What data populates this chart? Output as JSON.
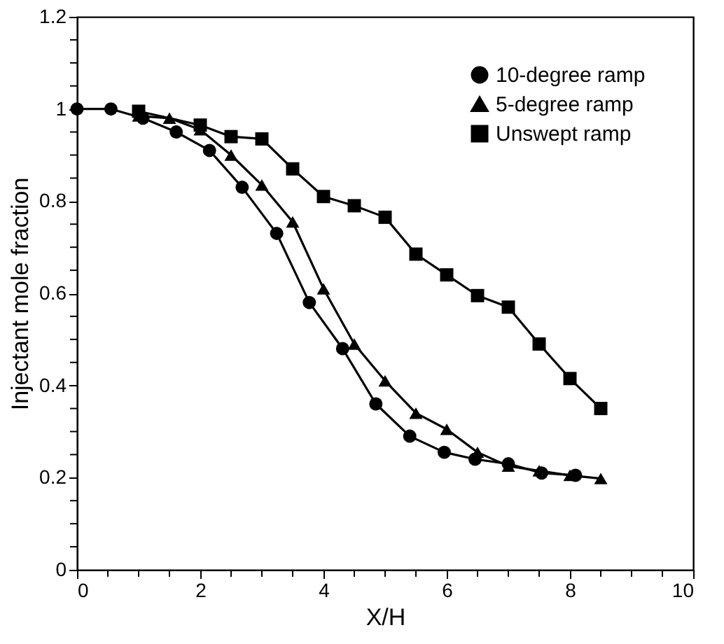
{
  "chart_data": {
    "type": "line",
    "xlabel": "X/H",
    "ylabel": "Injectant  mole fraction",
    "xlim": [
      0,
      10
    ],
    "ylim": [
      0,
      1.2
    ],
    "xticks": [
      0,
      {
        "value": 0.5,
        "label": null
      },
      {
        "value": 1,
        "label": null
      },
      {
        "value": 1.5,
        "label": null
      },
      2,
      {
        "value": 2.5,
        "label": null
      },
      {
        "value": 3,
        "label": null
      },
      {
        "value": 3.5,
        "label": null
      },
      4,
      {
        "value": 4.5,
        "label": null
      },
      {
        "value": 5,
        "label": null
      },
      {
        "value": 5.5,
        "label": null
      },
      6,
      {
        "value": 6.5,
        "label": null
      },
      {
        "value": 7,
        "label": null
      },
      {
        "value": 7.5,
        "label": null
      },
      8,
      {
        "value": 8.5,
        "label": null
      },
      {
        "value": 9,
        "label": null
      },
      {
        "value": 9.5,
        "label": null
      },
      10
    ],
    "yticks": [
      0,
      {
        "value": 0.05,
        "label": null
      },
      {
        "value": 0.1,
        "label": null
      },
      {
        "value": 0.15,
        "label": null
      },
      0.2,
      {
        "value": 0.25,
        "label": null
      },
      {
        "value": 0.3,
        "label": null
      },
      {
        "value": 0.35,
        "label": null
      },
      0.4,
      {
        "value": 0.45,
        "label": null
      },
      {
        "value": 0.5,
        "label": null
      },
      {
        "value": 0.55,
        "label": null
      },
      0.6,
      {
        "value": 0.65,
        "label": null
      },
      {
        "value": 0.7,
        "label": null
      },
      {
        "value": 0.75,
        "label": null
      },
      0.8,
      {
        "value": 0.85,
        "label": null
      },
      {
        "value": 0.9,
        "label": null
      },
      {
        "value": 0.95,
        "label": null
      },
      1,
      {
        "value": 1.05,
        "label": null
      },
      {
        "value": 1.1,
        "label": null
      },
      {
        "value": 1.15,
        "label": null
      },
      1.2
    ],
    "grid": false,
    "legend": "top right",
    "line_style": "solid",
    "series": [
      {
        "name": "10-degree ramp",
        "color": "#000000",
        "marker": "circle",
        "x": [
          0,
          0.55,
          1.07,
          1.61,
          2.15,
          2.68,
          3.24,
          3.77,
          4.31,
          4.85,
          5.4,
          5.96,
          6.46,
          7.0,
          7.54,
          8.09
        ],
        "values": [
          1.0,
          1.0,
          0.98,
          0.95,
          0.91,
          0.83,
          0.73,
          0.58,
          0.48,
          0.36,
          0.29,
          0.255,
          0.24,
          0.23,
          0.21,
          0.205
        ]
      },
      {
        "name": "5-degree ramp",
        "color": "#000000",
        "marker": "triangle",
        "x": [
          1.0,
          1.5,
          2.0,
          2.5,
          3.0,
          3.5,
          4.0,
          4.5,
          5.0,
          5.5,
          6.0,
          6.5,
          7.0,
          7.5,
          8.0,
          8.5
        ],
        "values": [
          0.985,
          0.98,
          0.955,
          0.9,
          0.835,
          0.755,
          0.61,
          0.49,
          0.41,
          0.34,
          0.305,
          0.255,
          0.225,
          0.215,
          0.205,
          0.198
        ]
      },
      {
        "name": "Unswept ramp",
        "color": "#000000",
        "marker": "square",
        "x": [
          1.0,
          2.0,
          2.5,
          3.0,
          3.5,
          4.0,
          4.5,
          5.0,
          5.5,
          6.0,
          6.5,
          7.0,
          7.5,
          8.0,
          8.5
        ],
        "values": [
          0.995,
          0.965,
          0.94,
          0.935,
          0.87,
          0.81,
          0.79,
          0.765,
          0.685,
          0.64,
          0.595,
          0.57,
          0.49,
          0.415,
          0.35
        ]
      }
    ]
  }
}
